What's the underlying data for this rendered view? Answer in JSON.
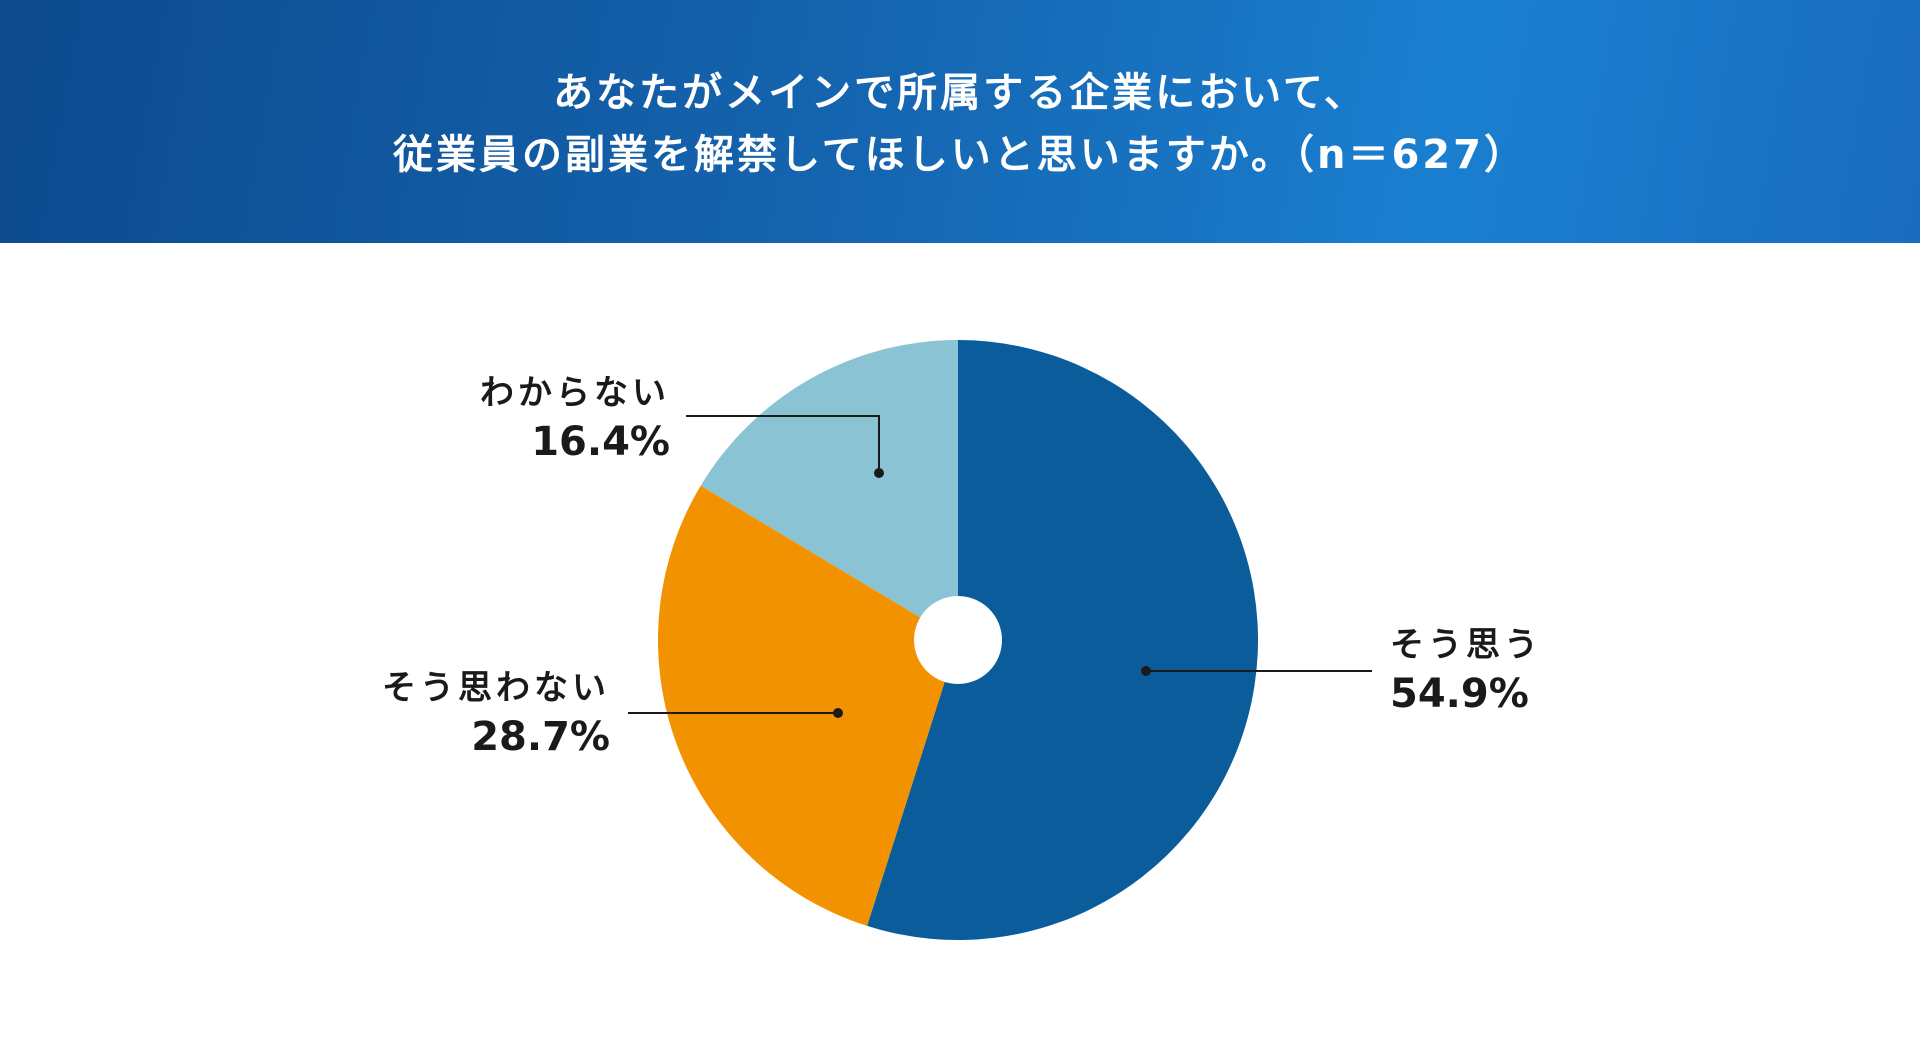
{
  "chart_data": {
    "type": "pie",
    "title_line1": "あなたがメインで所属する企業において、",
    "title_line2": "従業員の副業を解禁してほしいと思いますか。（n＝627）",
    "slices": [
      {
        "label": "そう思う",
        "value": 54.9,
        "display": "54.9%",
        "color": "#0a5c9b"
      },
      {
        "label": "そう思わない",
        "value": 28.7,
        "display": "28.7%",
        "color": "#f39200"
      },
      {
        "label": "わからない",
        "value": 16.4,
        "display": "16.4%",
        "color": "#8ac4d4"
      }
    ],
    "legend": "none",
    "donut_hole": true
  }
}
